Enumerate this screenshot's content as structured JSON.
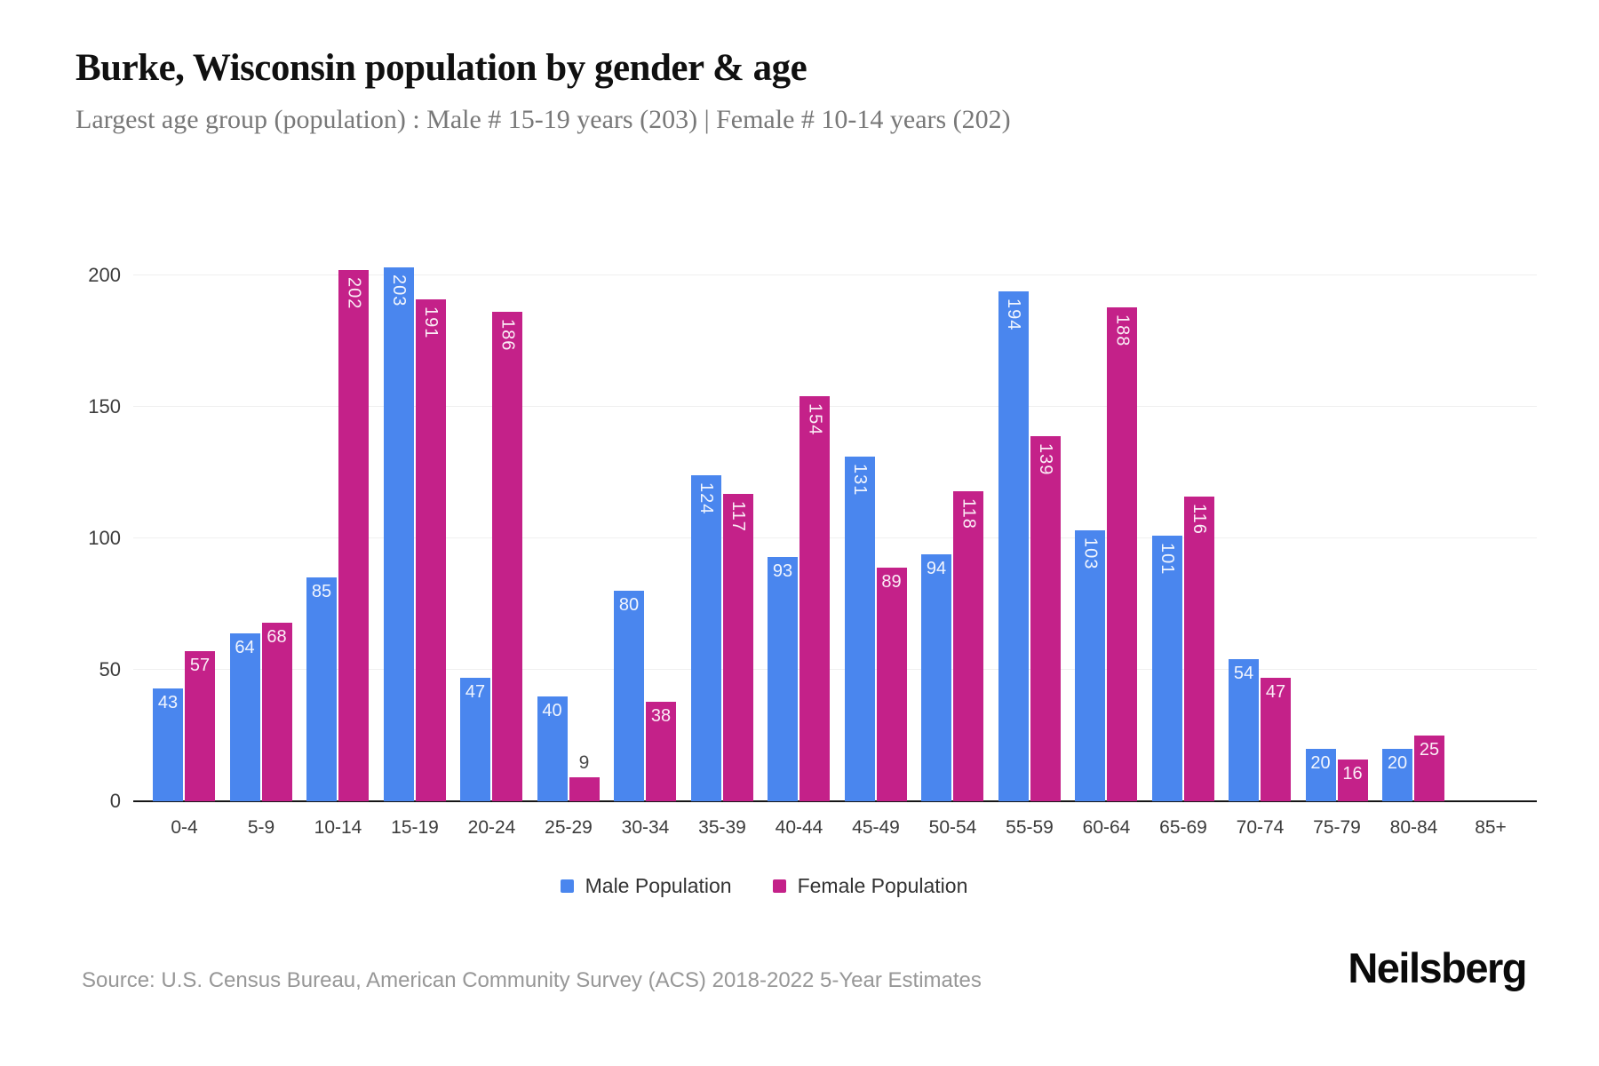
{
  "header": {
    "title": "Burke, Wisconsin population by gender & age",
    "subtitle": "Largest age group (population) : Male # 15-19 years (203) | Female # 10-14 years (202)"
  },
  "chart_data": {
    "type": "bar",
    "title": "Burke, Wisconsin population by gender & age",
    "categories": [
      "0-4",
      "5-9",
      "10-14",
      "15-19",
      "20-24",
      "25-29",
      "30-34",
      "35-39",
      "40-44",
      "45-49",
      "50-54",
      "55-59",
      "60-64",
      "65-69",
      "70-74",
      "75-79",
      "80-84",
      "85+"
    ],
    "series": [
      {
        "name": "Male Population",
        "color": "#4a86ee",
        "values": [
          43,
          64,
          85,
          203,
          47,
          40,
          80,
          124,
          93,
          131,
          94,
          194,
          103,
          101,
          54,
          20,
          20,
          0
        ]
      },
      {
        "name": "Female Population",
        "color": "#c42189",
        "values": [
          57,
          68,
          202,
          191,
          186,
          9,
          38,
          117,
          154,
          89,
          118,
          139,
          188,
          116,
          47,
          16,
          25,
          0
        ]
      }
    ],
    "xlabel": "",
    "ylabel": "",
    "ylim": [
      0,
      210
    ],
    "yticks": [
      0,
      50,
      100,
      150,
      200
    ],
    "grid": true,
    "legend_position": "bottom",
    "value_labels": "shown on bars; values >= 100 rotated vertical, value 9 placed above bar"
  },
  "footer": {
    "source": "Source: U.S. Census Bureau, American Community Survey (ACS) 2018-2022 5-Year Estimates",
    "brand": "Neilsberg"
  }
}
